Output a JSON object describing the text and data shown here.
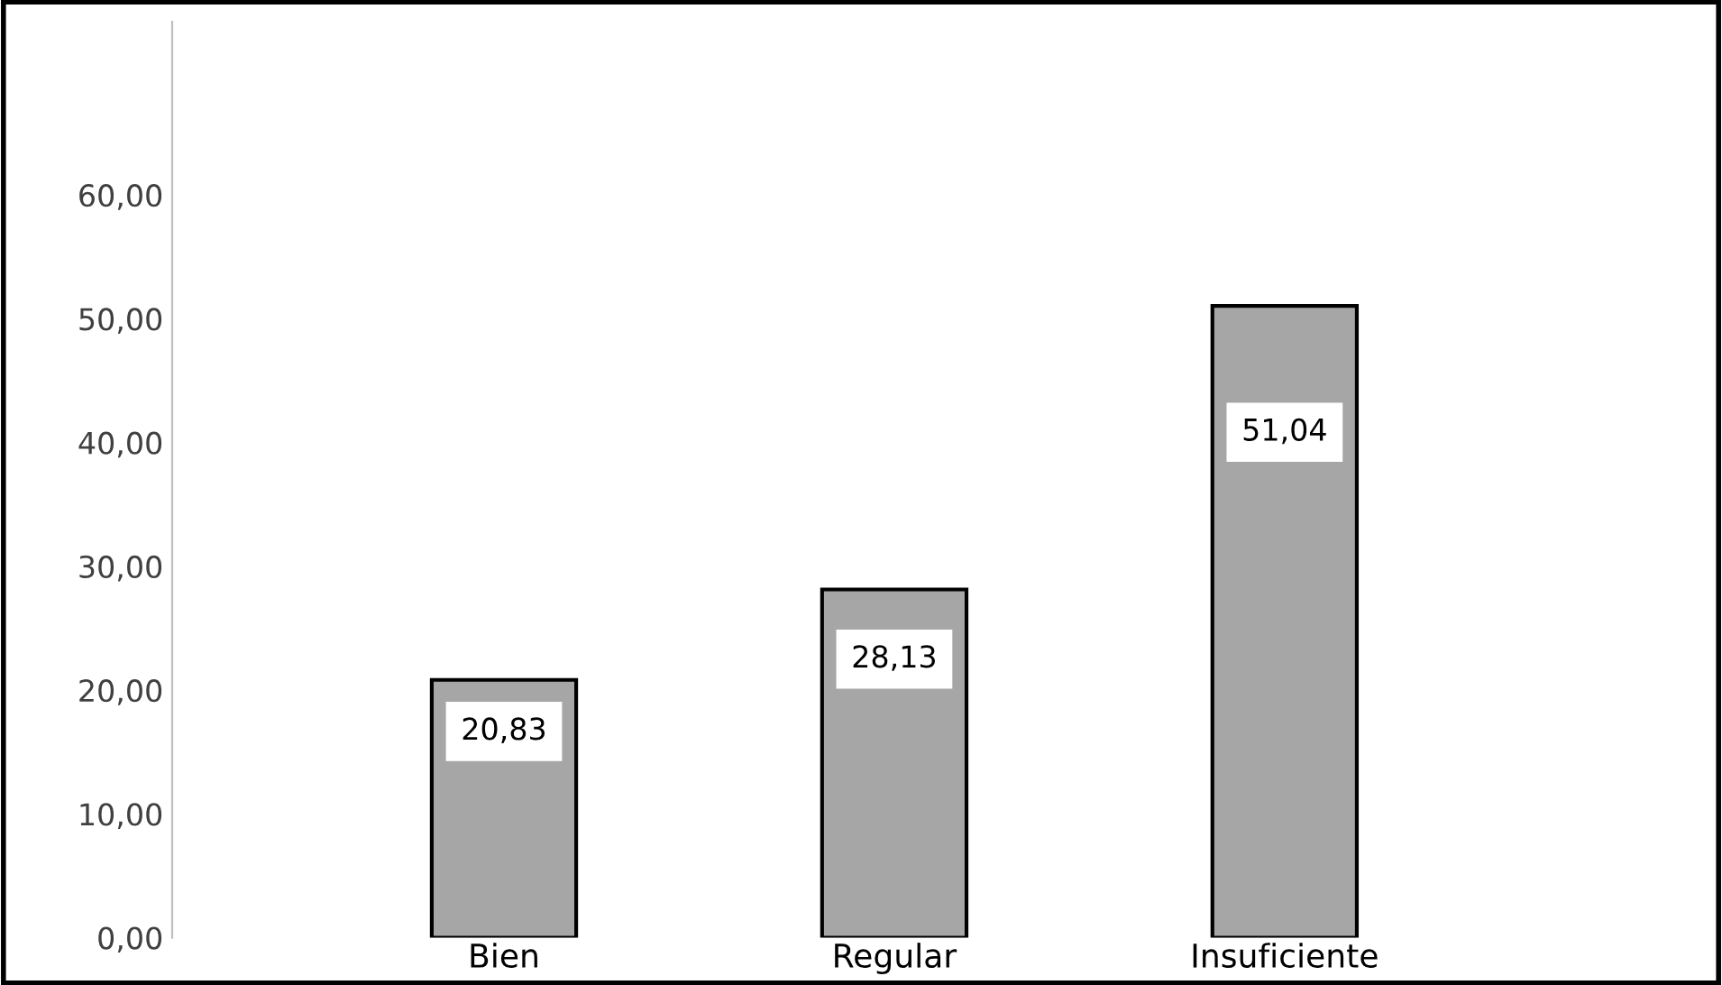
{
  "chart_data": {
    "type": "bar",
    "categories": [
      "Bien",
      "Regular",
      "Insuficiente"
    ],
    "values": [
      20.83,
      28.13,
      51.04
    ],
    "value_labels": [
      "20,83",
      "28,13",
      "51,04"
    ],
    "color": "#a6a6a6",
    "ylim": [
      0,
      74
    ],
    "yticks": [
      {
        "value": 0,
        "label": "0,00"
      },
      {
        "value": 10,
        "label": "10,00"
      },
      {
        "value": 20,
        "label": "20,00"
      },
      {
        "value": 30,
        "label": "30,00"
      },
      {
        "value": 40,
        "label": "40,00"
      },
      {
        "value": 50,
        "label": "50,00"
      },
      {
        "value": 60,
        "label": "60,00"
      }
    ],
    "grid": false,
    "legend": false
  }
}
